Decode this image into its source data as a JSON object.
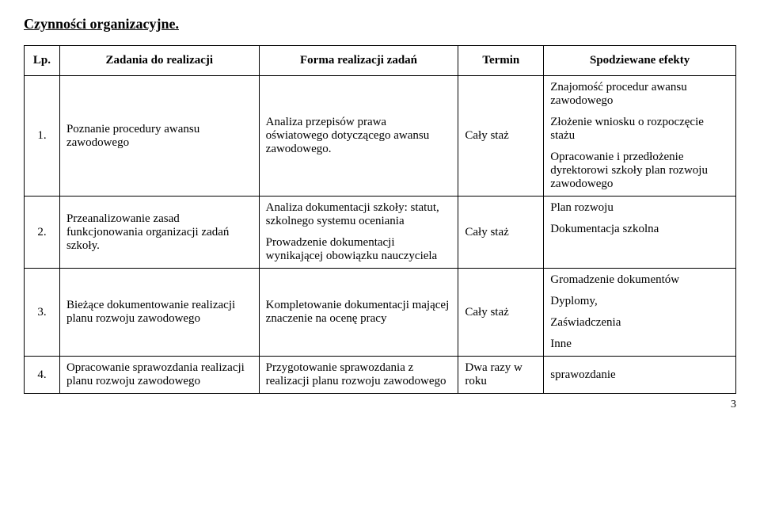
{
  "title": "Czynności organizacyjne.",
  "headers": {
    "lp": "Lp.",
    "task": "Zadania do realizacji",
    "form": "Forma realizacji zadań",
    "term": "Termin",
    "effect": "Spodziewane efekty"
  },
  "rows": [
    {
      "lp": "1.",
      "task": "Poznanie procedury awansu zawodowego",
      "form": "Analiza przepisów prawa oświatowego dotyczącego awansu zawodowego.",
      "term": "Cały staż",
      "effects": [
        "Znajomość procedur awansu zawodowego",
        "Złożenie wniosku o rozpoczęcie stażu",
        "Opracowanie i przedłożenie dyrektorowi szkoły plan rozwoju zawodowego"
      ]
    },
    {
      "lp": "2.",
      "task": "Przeanalizowanie zasad funkcjonowania organizacji zadań szkoły.",
      "form_paras": [
        "Analiza dokumentacji szkoły: statut, szkolnego systemu oceniania",
        "Prowadzenie dokumentacji wynikającej obowiązku nauczyciela"
      ],
      "term": "Cały staż",
      "effects": [
        "Plan rozwoju",
        "Dokumentacja szkolna"
      ]
    },
    {
      "lp": "3.",
      "task": "Bieżące dokumentowanie realizacji planu rozwoju zawodowego",
      "form": "Kompletowanie dokumentacji mającej znaczenie na ocenę pracy",
      "term": "Cały staż",
      "effects": [
        "Gromadzenie dokumentów",
        "Dyplomy,",
        "Zaświadczenia",
        "Inne"
      ]
    },
    {
      "lp": "4.",
      "task": "Opracowanie sprawozdania realizacji planu rozwoju zawodowego",
      "form": "Przygotowanie sprawozdania z realizacji planu rozwoju zawodowego",
      "term": "Dwa razy w roku",
      "effects": [
        "sprawozdanie"
      ]
    }
  ],
  "page_number": "3"
}
